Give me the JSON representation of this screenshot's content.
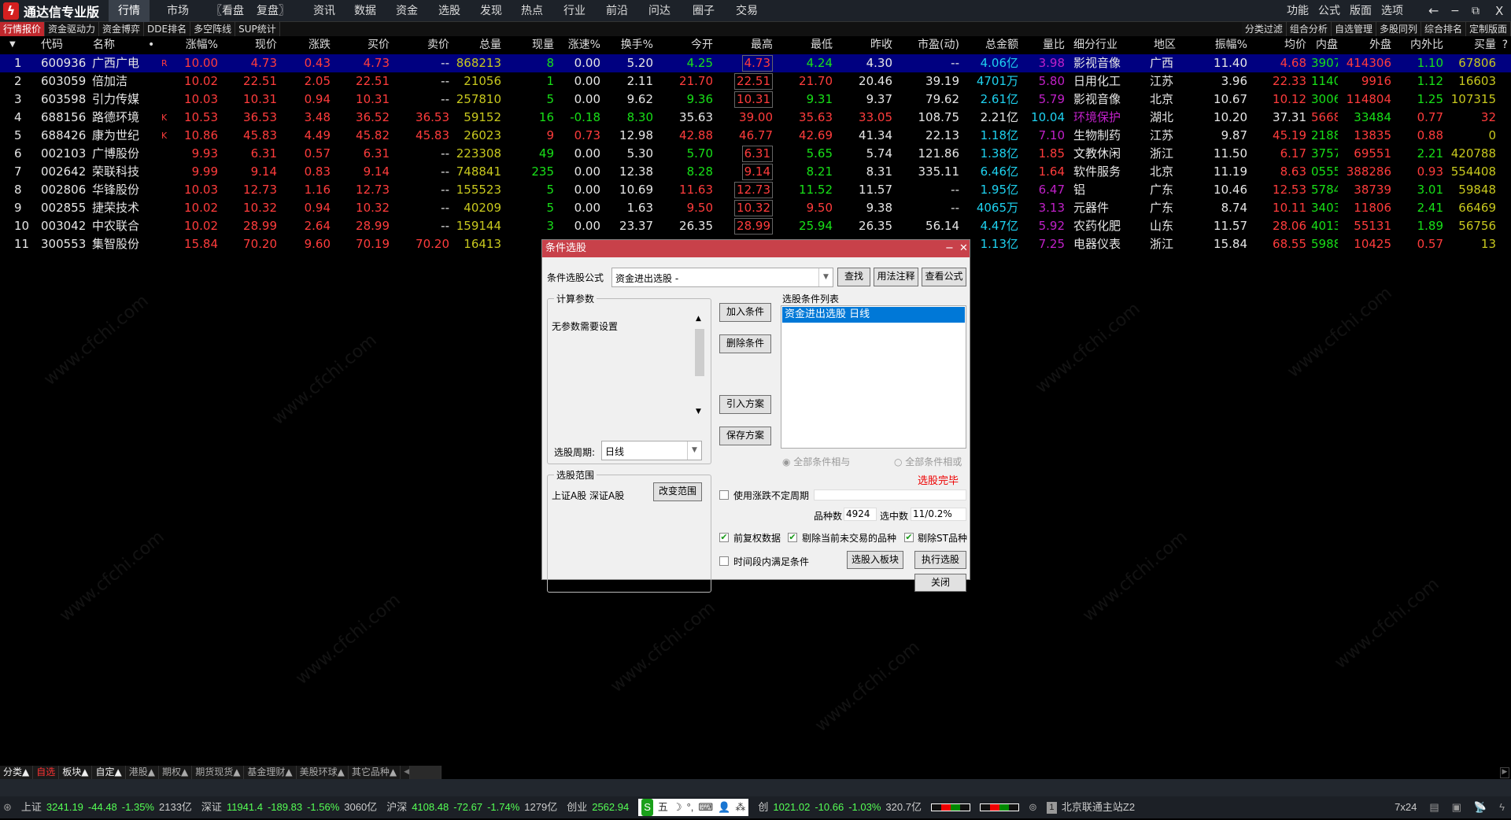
{
  "app": {
    "title": "通达信专业版",
    "logo_icon": "tdx-logo-icon"
  },
  "menu": {
    "items": [
      "行情",
      "市场",
      "〖看盘",
      "复盘〗",
      "资讯",
      "数据",
      "资金",
      "选股",
      "发现",
      "热点",
      "行业",
      "前沿",
      "问达",
      "圈子",
      "交易"
    ],
    "active": "行情",
    "right": [
      "功能",
      "公式",
      "版面",
      "选项"
    ],
    "window_controls": [
      "←",
      "−",
      "⧉",
      "X"
    ]
  },
  "tabs": {
    "left": [
      "行情报价",
      "资金驱动力",
      "资金博弈",
      "DDE排名",
      "多空阵线",
      "SUP统计"
    ],
    "right": [
      "分类过滤",
      "组合分析",
      "自选管理",
      "多股同列",
      "综合排名",
      "定制版面"
    ]
  },
  "table": {
    "headers": [
      "",
      "代码",
      "名称",
      "•",
      "涨幅%",
      "现价",
      "涨跌",
      "买价",
      "卖价",
      "总量",
      "现量",
      "涨速%",
      "换手%",
      "今开",
      "最高",
      "最低",
      "昨收",
      "市盈(动)",
      "总金额",
      "量比",
      "细分行业",
      "地区",
      "振幅%",
      "均价",
      "内盘",
      "外盘",
      "内外比",
      "买量",
      "?"
    ],
    "colors": {
      "up": "#ff3c3c",
      "down": "#18e018",
      "flat": "#e6e6e6",
      "volume": "#c8c81e",
      "amount": "#1ed2f0",
      "ratio": "#c020c8",
      "selected_row": "#000080"
    },
    "rows": [
      {
        "cells": [
          "1",
          "600936",
          "广西广电",
          "R",
          "10.00",
          "4.73",
          "0.43",
          "4.73",
          "--",
          "868213",
          "8",
          "0.00",
          "5.20",
          "4.25",
          "4.73",
          "4.24",
          "4.30",
          "--",
          "4.06亿",
          "3.98",
          "影视音像",
          "广西",
          "11.40",
          "4.68",
          "3907",
          "414306",
          "1.10",
          "67806"
        ],
        "colors": "wwwrrrrrwygwwgrgwwcmwwwrgrgy",
        "high_limit": true,
        "selected": true
      },
      {
        "cells": [
          "2",
          "603059",
          "倍加洁",
          "",
          "10.02",
          "22.51",
          "2.05",
          "22.51",
          "--",
          "21056",
          "1",
          "0.00",
          "2.11",
          "21.70",
          "22.51",
          "21.70",
          "20.46",
          "39.19",
          "4701万",
          "5.80",
          "日用化工",
          "江苏",
          "3.96",
          "22.33",
          "1140",
          "9916",
          "1.12",
          "16603"
        ],
        "colors": "wwwrrrrrwygwwrrrwwcmwwwrgrgy",
        "high_limit": true
      },
      {
        "cells": [
          "3",
          "603598",
          "引力传媒",
          "",
          "10.03",
          "10.31",
          "0.94",
          "10.31",
          "--",
          "257810",
          "5",
          "0.00",
          "9.62",
          "9.36",
          "10.31",
          "9.31",
          "9.37",
          "79.62",
          "2.61亿",
          "5.79",
          "影视音像",
          "北京",
          "10.67",
          "10.12",
          "3006",
          "114804",
          "1.25",
          "107315"
        ],
        "colors": "wwwrrrrrwygwwgrgwwcmwwwrgrgy",
        "high_limit": true
      },
      {
        "cells": [
          "4",
          "688156",
          "路德环境",
          "K",
          "10.53",
          "36.53",
          "3.48",
          "36.52",
          "36.53",
          "59152",
          "16",
          "-0.18",
          "8.30",
          "35.63",
          "39.00",
          "35.63",
          "33.05",
          "108.75",
          "2.21亿",
          "10.04",
          "环境保护",
          "湖北",
          "10.20",
          "37.31",
          "5668",
          "33484",
          "0.77",
          "32"
        ],
        "colors": "wwwrrrrrrygggwrrrwwcmwwwrgrry",
        "high_limit": false
      },
      {
        "cells": [
          "5",
          "688426",
          "康为世纪",
          "K",
          "10.86",
          "45.83",
          "4.49",
          "45.82",
          "45.83",
          "26023",
          "9",
          "0.73",
          "12.98",
          "42.88",
          "46.77",
          "42.69",
          "41.34",
          "22.13",
          "1.18亿",
          "7.10",
          "生物制药",
          "江苏",
          "9.87",
          "45.19",
          "2188",
          "13835",
          "0.88",
          "0"
        ],
        "colors": "wwwrrrrrryrrwrrrwwcmwwwrgrry",
        "high_limit": false
      },
      {
        "cells": [
          "6",
          "002103",
          "广博股份",
          "",
          "9.93",
          "6.31",
          "0.57",
          "6.31",
          "--",
          "223308",
          "49",
          "0.00",
          "5.30",
          "5.70",
          "6.31",
          "5.65",
          "5.74",
          "121.86",
          "1.38亿",
          "1.85",
          "文教休闲",
          "浙江",
          "11.50",
          "6.17",
          "3757",
          "69551",
          "2.21",
          "420788"
        ],
        "colors": "wwwrrrrrwygwwgrgwwcrwwwrgrgy",
        "high_limit": true
      },
      {
        "cells": [
          "7",
          "002642",
          "荣联科技",
          "",
          "9.99",
          "9.14",
          "0.83",
          "9.14",
          "--",
          "748841",
          "235",
          "0.00",
          "12.38",
          "8.28",
          "9.14",
          "8.21",
          "8.31",
          "335.11",
          "6.46亿",
          "1.64",
          "软件服务",
          "北京",
          "11.19",
          "8.63",
          "0555",
          "388286",
          "0.93",
          "554408"
        ],
        "colors": "wwwrrrrrwygwwgrgwwcrwwwrgrry",
        "high_limit": true
      },
      {
        "cells": [
          "8",
          "002806",
          "华锋股份",
          "",
          "10.03",
          "12.73",
          "1.16",
          "12.73",
          "--",
          "155523",
          "5",
          "0.00",
          "10.69",
          "11.63",
          "12.73",
          "11.52",
          "11.57",
          "--",
          "1.95亿",
          "6.47",
          "铝",
          "广东",
          "10.46",
          "12.53",
          "5784",
          "38739",
          "3.01",
          "59848"
        ],
        "colors": "wwwrrrrrwygwwrrgwwcmwwwrgrgy",
        "high_limit": true
      },
      {
        "cells": [
          "9",
          "002855",
          "捷荣技术",
          "",
          "10.02",
          "10.32",
          "0.94",
          "10.32",
          "--",
          "40209",
          "5",
          "0.00",
          "1.63",
          "9.50",
          "10.32",
          "9.50",
          "9.38",
          "--",
          "4065万",
          "3.13",
          "元器件",
          "广东",
          "8.74",
          "10.11",
          "3403",
          "11806",
          "2.41",
          "66469"
        ],
        "colors": "wwwrrrrrwygwwrrrwwcmwwwrgrgy",
        "high_limit": true
      },
      {
        "cells": [
          "10",
          "003042",
          "中农联合",
          "",
          "10.02",
          "28.99",
          "2.64",
          "28.99",
          "--",
          "159144",
          "3",
          "0.00",
          "23.37",
          "26.35",
          "28.99",
          "25.94",
          "26.35",
          "56.14",
          "4.47亿",
          "5.92",
          "农药化肥",
          "山东",
          "11.57",
          "28.06",
          "4013",
          "55131",
          "1.89",
          "56756"
        ],
        "colors": "wwwrrrrrwygwwwrgwwcmwwwrgrgy",
        "high_limit": true
      },
      {
        "cells": [
          "11",
          "300553",
          "集智股份",
          "",
          "15.84",
          "70.20",
          "9.60",
          "70.19",
          "70.20",
          "16413",
          "",
          "",
          "",
          "",
          "",
          "",
          "",
          "",
          "1.13亿",
          "7.25",
          "电器仪表",
          "浙江",
          "15.84",
          "68.55",
          "5988",
          "10425",
          "0.57",
          "13"
        ],
        "colors": "wwwrrrrrrywwwwwwwwcmwwwrgrry",
        "high_limit": false
      }
    ]
  },
  "watermark": "www.cfchi.com",
  "dialog": {
    "title": "条件选股",
    "formula_label": "条件选股公式",
    "formula_value": "资金进出选股 -",
    "find_button": "查找",
    "usage_button": "用法注释",
    "view_formula_button": "查看公式",
    "params_group": "计算参数",
    "params_text": "无参数需要设置",
    "period_label": "选股周期:",
    "period_value": "日线",
    "add_condition": "加入条件",
    "delete_condition": "删除条件",
    "import_plan": "引入方案",
    "save_plan": "保存方案",
    "conditions_label": "选股条件列表",
    "conditions": [
      "资金进出选股  日线"
    ],
    "radio_and": "全部条件相与",
    "radio_or": "全部条件相或",
    "radio_selected": "and",
    "done_text": "选股完毕",
    "range_group": "选股范围",
    "range_text": "上证A股 深证A股",
    "change_range": "改变范围",
    "use_period_label": "使用涨跌不定周期",
    "use_period_checked": false,
    "count_label": "品种数",
    "count_value": "4924",
    "selected_label": "选中数",
    "selected_value": "11/0.2%",
    "fq_label": "前复权数据",
    "fq_checked": true,
    "exclude_untraded_label": "剔除当前未交易的品种",
    "exclude_untraded_checked": true,
    "exclude_st_label": "剔除ST品种",
    "exclude_st_checked": true,
    "time_range_label": "时间段内满足条件",
    "time_range_checked": false,
    "to_block_button": "选股入板块",
    "execute_button": "执行选股",
    "close_button": "关闭"
  },
  "bottom_tabs": [
    "分类▲",
    "自选",
    "板块▲",
    "自定▲",
    "港股▲",
    "期权▲",
    "期货现货▲",
    "基金理财▲",
    "美股环球▲",
    "其它品种▲"
  ],
  "status": {
    "sh": {
      "name": "上证",
      "value": "3241.19",
      "change": "-44.48",
      "pct": "-1.35%",
      "amount": "2133亿"
    },
    "sz": {
      "name": "深证",
      "value": "11941.4",
      "change": "-189.83",
      "pct": "-1.56%",
      "amount": "3060亿"
    },
    "hs": {
      "name": "沪深",
      "value": "4108.48",
      "change": "-72.67",
      "pct": "-1.74%",
      "amount": "1279亿"
    },
    "cy": {
      "name": "创业",
      "value": "2562.94"
    },
    "kc": {
      "name": "创",
      "value": "1021.02",
      "change": "-10.66",
      "pct": "-1.03%",
      "amount": "320.7亿"
    },
    "ime": [
      "S",
      "五",
      "☽",
      "°,",
      "⌨",
      "👤",
      "⁂"
    ],
    "server_index": "1",
    "server": "北京联通主站Z2",
    "service": "7x24"
  }
}
